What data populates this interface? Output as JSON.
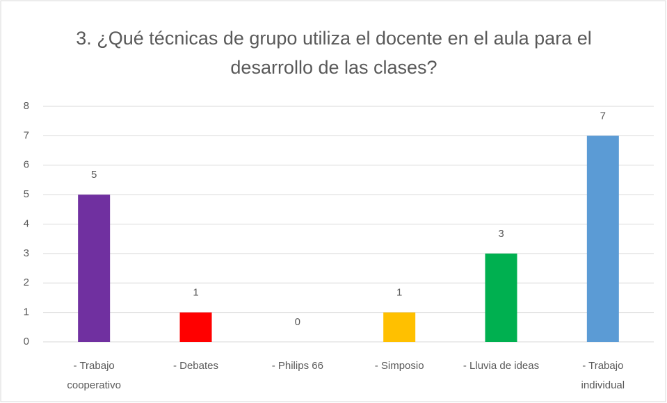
{
  "chart_data": {
    "type": "bar",
    "title": "3. ¿Qué técnicas de grupo utiliza el docente en el aula para el desarrollo de las clases?",
    "categories": [
      "- Trabajo cooperativo",
      "- Debates",
      "- Philips 66",
      "- Simposio",
      "- Lluvia de ideas",
      "- Trabajo individual"
    ],
    "values": [
      5,
      1,
      0,
      1,
      3,
      7
    ],
    "colors": [
      "#7030a0",
      "#ff0000",
      "#a5a5a5",
      "#ffc000",
      "#00b050",
      "#5b9bd5"
    ],
    "ylim": [
      0,
      8
    ],
    "yticks": [
      0,
      1,
      2,
      3,
      4,
      5,
      6,
      7,
      8
    ],
    "grid": true
  }
}
